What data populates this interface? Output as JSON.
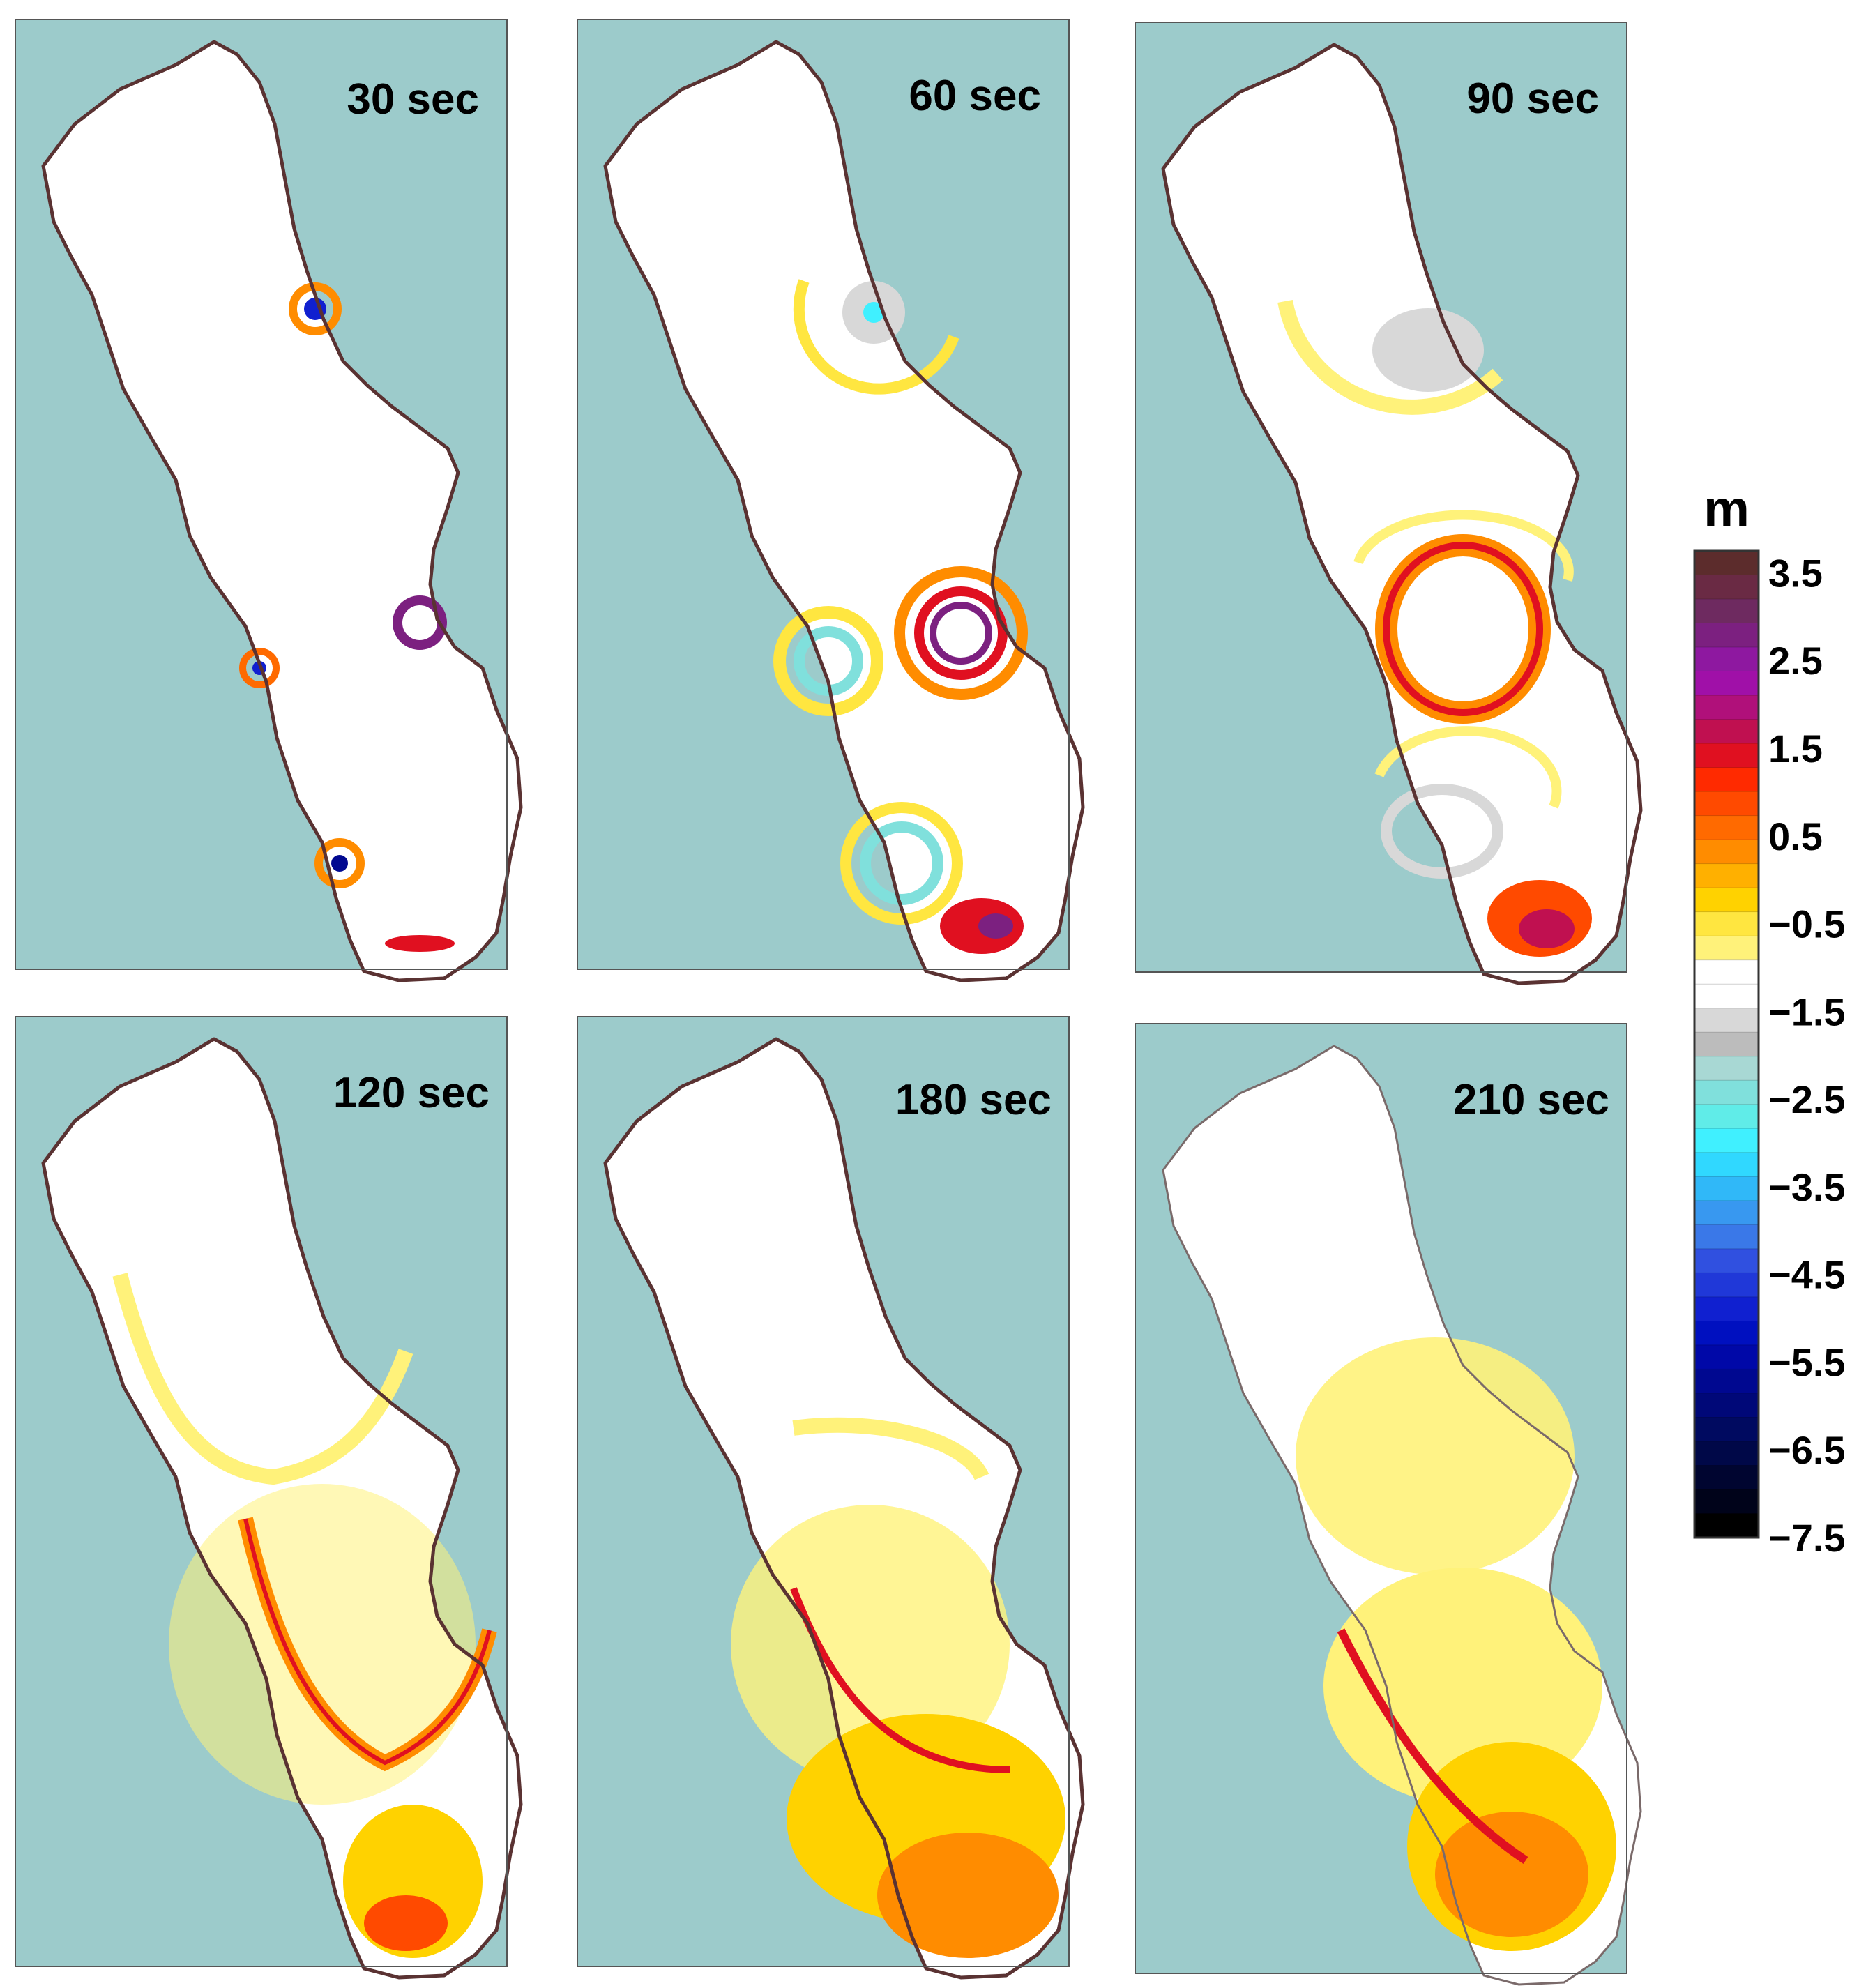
{
  "colors": {
    "land": "#9ccbcb",
    "water": "#ffffff",
    "coast": "#5a3232",
    "frame": "#555555"
  },
  "panels": [
    {
      "label": "30 sec"
    },
    {
      "label": "60 sec"
    },
    {
      "label": "90 sec"
    },
    {
      "label": "120 sec"
    },
    {
      "label": "180 sec"
    },
    {
      "label": "210 sec"
    }
  ],
  "colorbar": {
    "unit": "m",
    "range": [
      -7.5,
      3.75
    ],
    "tick_labels": [
      "3.5",
      "2.5",
      "1.5",
      "0.5",
      "−0.5",
      "−1.5",
      "−2.5",
      "−3.5",
      "−4.5",
      "−5.5",
      "−6.5",
      "−7.5"
    ],
    "colors_top_to_bottom": [
      "#5c2c2c",
      "#6a2a44",
      "#6e2a60",
      "#7c2080",
      "#8e18a0",
      "#a010a8",
      "#b0107a",
      "#c01050",
      "#e01020",
      "#ff2a00",
      "#ff4a00",
      "#ff6a00",
      "#ff8c00",
      "#ffb000",
      "#ffd200",
      "#ffe640",
      "#fff27a",
      "#ffffff",
      "#ffffff",
      "#d8d8d8",
      "#bcbcbc",
      "#a8d8d4",
      "#80e0dc",
      "#60ece8",
      "#40f0ff",
      "#30d8ff",
      "#30b8f8",
      "#3898f0",
      "#3a78e8",
      "#3050e0",
      "#2038d8",
      "#1020d0",
      "#0010c0",
      "#0008a8",
      "#000890",
      "#000878",
      "#000a60",
      "#000848",
      "#000530",
      "#00031a",
      "#000000"
    ]
  }
}
